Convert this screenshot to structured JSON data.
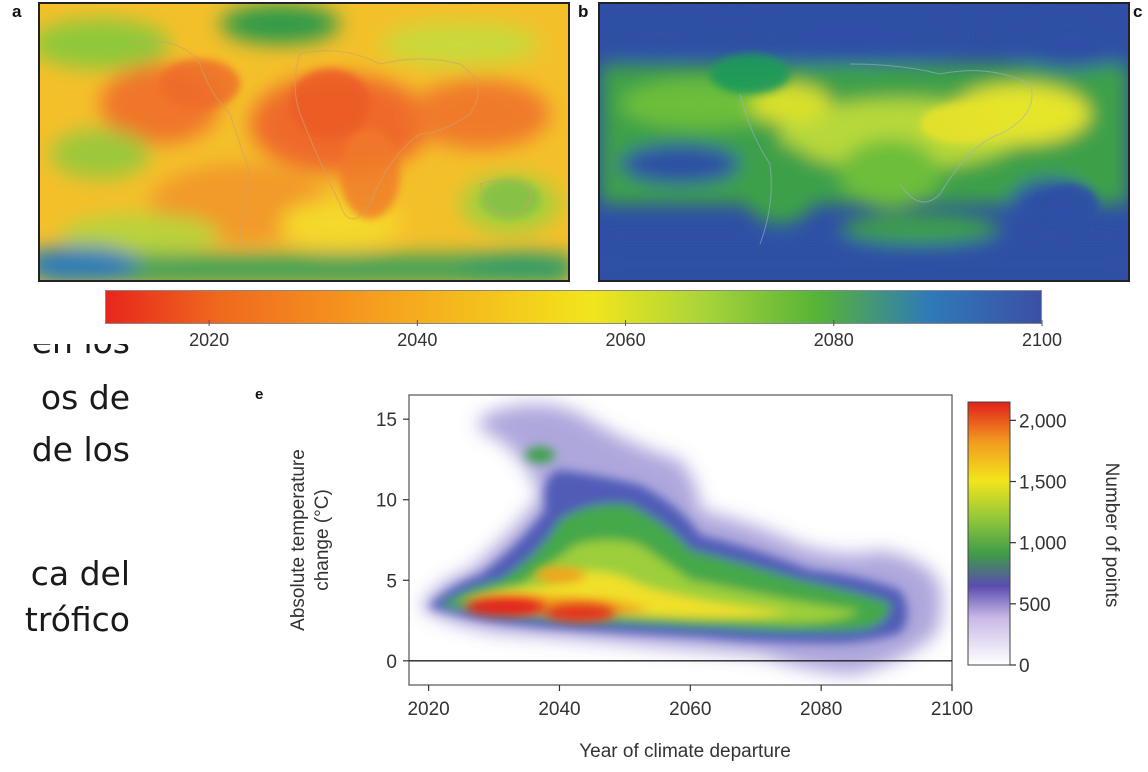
{
  "slide_text": {
    "line1": "os de",
    "line2": "de los",
    "line3": "ca del",
    "line4": "trófico"
  },
  "panels": {
    "a": "a",
    "b": "b",
    "e": "e"
  },
  "chart_data": [
    {
      "type": "heatmap",
      "panel": "a",
      "title": "",
      "description_shown": "world map colored by year of climate departure (mostly 2020-2050)",
      "dominant_range": [
        2020,
        2055
      ]
    },
    {
      "type": "heatmap",
      "panel": "b",
      "title": "",
      "description_shown": "world map colored by year of climate departure (mostly 2060-2100)",
      "dominant_range": [
        2055,
        2100
      ]
    },
    {
      "type": "colorbar",
      "orientation": "horizontal",
      "ticks": [
        "2020",
        "2040",
        "2060",
        "2080",
        "2100"
      ],
      "range": [
        2010,
        2100
      ],
      "colors": [
        "#e8261c",
        "#f6a21e",
        "#f2e51c",
        "#57b436",
        "#2a56a8",
        "#3c4fa6"
      ]
    },
    {
      "type": "heatmap",
      "panel": "e",
      "xlabel": "Year of climate departure",
      "ylabel": "Absolute temperature change (°C)",
      "ylabel_lines": [
        "Absolute temperature",
        "change (°C)"
      ],
      "xlim": [
        2017,
        2100
      ],
      "ylim": [
        -1.5,
        16.5
      ],
      "x_ticks": [
        "2020",
        "2040",
        "2060",
        "2080",
        "2100"
      ],
      "y_ticks": [
        "0",
        "5",
        "10",
        "15"
      ],
      "colorbar": {
        "label": "Number of points",
        "ticks": [
          "0",
          "500",
          "1,000",
          "1,500",
          "2,000"
        ],
        "range": [
          0,
          2150
        ]
      },
      "density_regions": [
        {
          "x": 2023,
          "y": 3.2,
          "count": 1300
        },
        {
          "x": 2030,
          "y": 3.3,
          "count": 2000
        },
        {
          "x": 2043,
          "y": 3.0,
          "count": 1850
        },
        {
          "x": 2055,
          "y": 3.0,
          "count": 1400
        },
        {
          "x": 2040,
          "y": 5.8,
          "count": 1500
        },
        {
          "x": 2050,
          "y": 9.0,
          "count": 1000
        },
        {
          "x": 2065,
          "y": 6.0,
          "count": 1100
        },
        {
          "x": 2085,
          "y": 3.5,
          "count": 1000
        },
        {
          "x": 2035,
          "y": 14.0,
          "count": 600
        },
        {
          "x": 2070,
          "y": 11.0,
          "count": 500
        },
        {
          "x": 2092,
          "y": 2.5,
          "count": 700
        }
      ]
    }
  ]
}
